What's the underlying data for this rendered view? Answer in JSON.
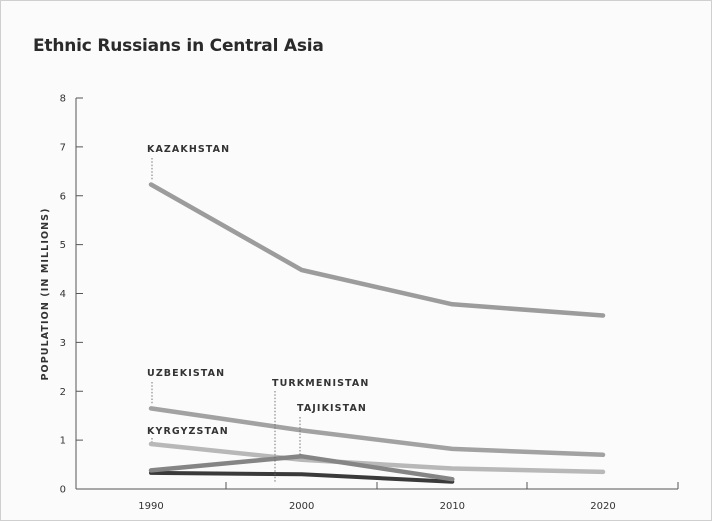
{
  "chart_data": {
    "type": "line",
    "title": "Ethnic Russians in Central Asia",
    "ylabel": "POPULATION (IN MILLIONS)",
    "xlabel": "",
    "x": [
      1990,
      2000,
      2010,
      2020
    ],
    "y_ticks": [
      0,
      1,
      2,
      3,
      4,
      5,
      6,
      7,
      8
    ],
    "x_ticks": [
      1990,
      2000,
      2010,
      2020
    ],
    "xlim": [
      1990,
      2020
    ],
    "ylim": [
      0,
      8
    ],
    "grid": false,
    "series": [
      {
        "name": "KAZAKHSTAN",
        "x": [
          1990,
          2000,
          2010,
          2020
        ],
        "values": [
          6.23,
          4.48,
          3.78,
          3.55
        ],
        "color": "#9c9c9c"
      },
      {
        "name": "UZBEKISTAN",
        "x": [
          1990,
          2000,
          2010,
          2020
        ],
        "values": [
          1.65,
          1.2,
          0.82,
          0.7
        ],
        "color": "#a2a2a2"
      },
      {
        "name": "KYRGYZSTAN",
        "x": [
          1990,
          2000,
          2010,
          2020
        ],
        "values": [
          0.92,
          0.6,
          0.42,
          0.35
        ],
        "color": "#b8b8b8"
      },
      {
        "name": "TURKMENISTAN",
        "x": [
          1990,
          2000,
          2010
        ],
        "values": [
          0.33,
          0.3,
          0.15
        ],
        "color": "#3a3a3a"
      },
      {
        "name": "TAJIKISTAN",
        "x": [
          1990,
          2000,
          2010
        ],
        "values": [
          0.38,
          0.67,
          0.2
        ],
        "color": "#858585"
      }
    ]
  }
}
